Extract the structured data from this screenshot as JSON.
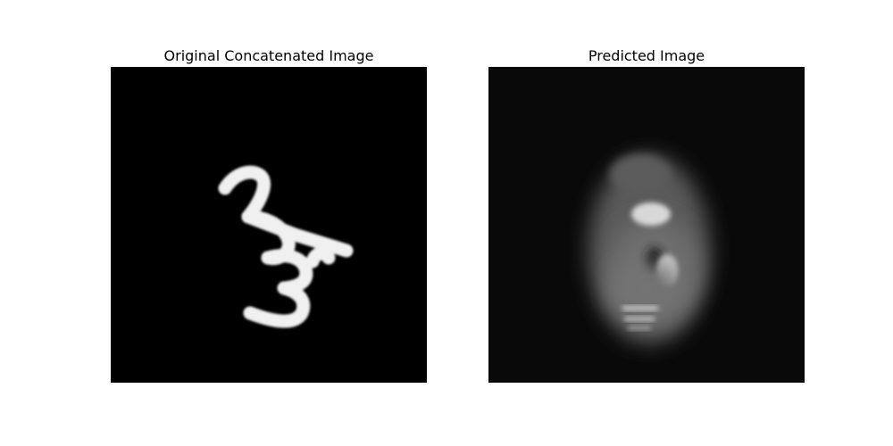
{
  "figure": {
    "panels": [
      {
        "title": "Original Concatenated Image"
      },
      {
        "title": "Predicted Image"
      }
    ]
  },
  "colors": {
    "background": "#ffffff",
    "image_background": "#000000",
    "digit_stroke": "#f2f2f2",
    "prediction_glow": "#8a8a8a"
  }
}
